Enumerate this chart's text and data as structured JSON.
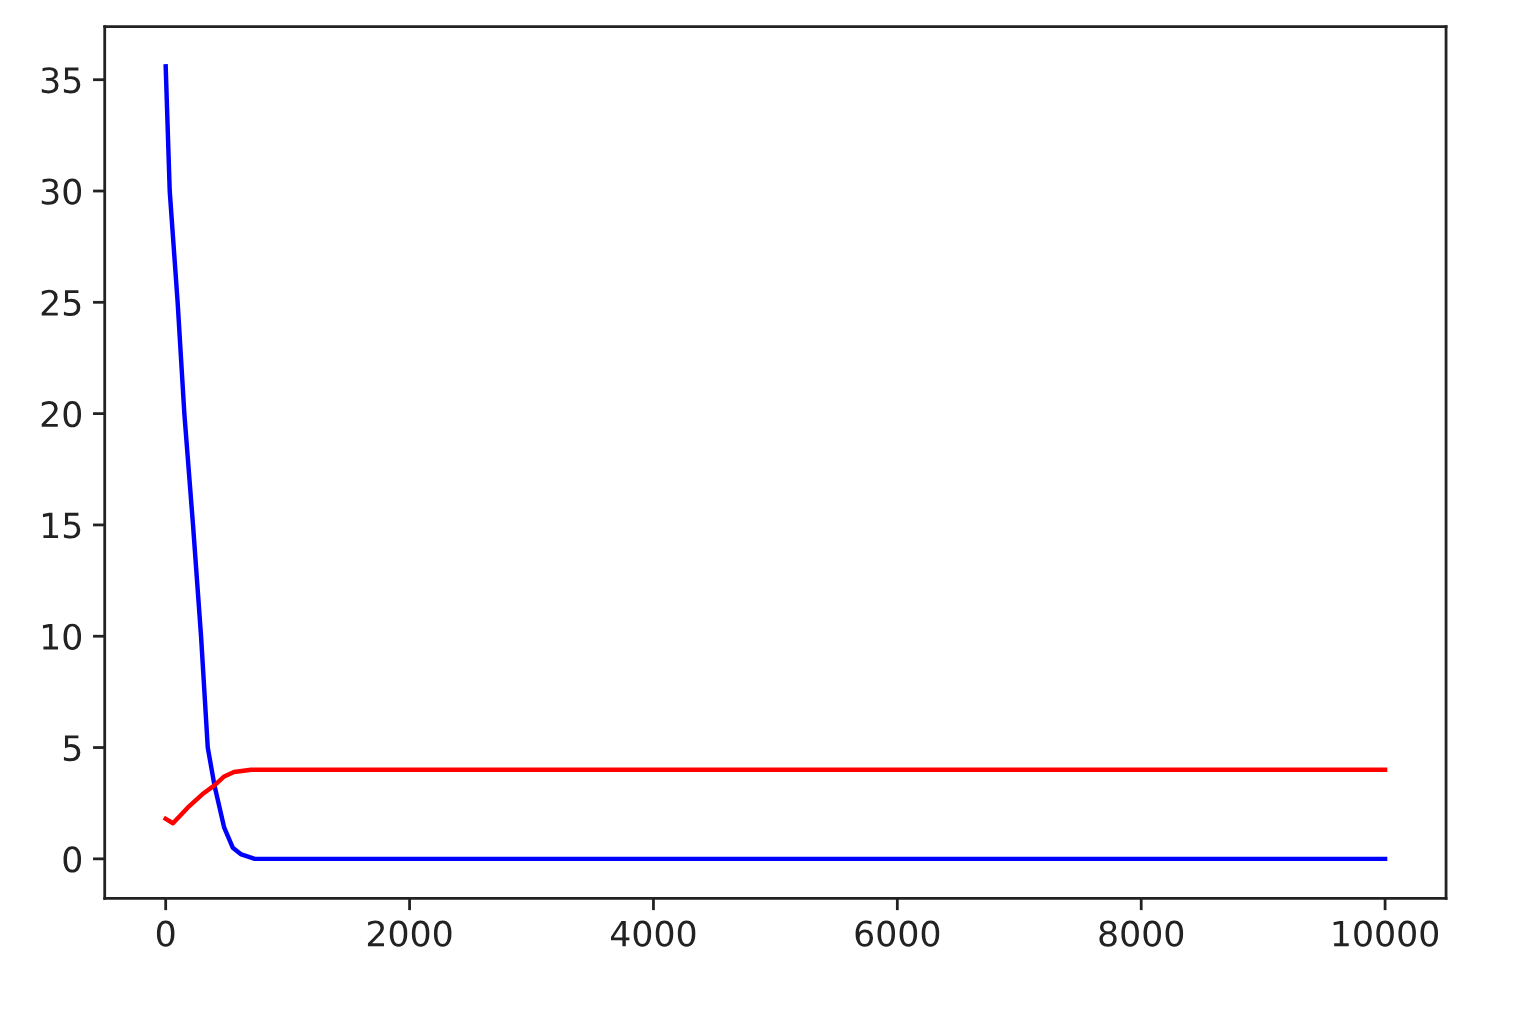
{
  "chart_data": {
    "type": "line",
    "series": [
      {
        "color": "#0000ff",
        "x": [
          0,
          33,
          98,
          153,
          224,
          290,
          345,
          400,
          480,
          550,
          620,
          730,
          10000
        ],
        "values": [
          35.6,
          30,
          25,
          20,
          15,
          10,
          5,
          3.3,
          1.4,
          0.5,
          0.2,
          0,
          0
        ]
      },
      {
        "color": "#ff0000",
        "x": [
          0,
          60,
          180,
          300,
          400,
          480,
          560,
          700,
          1000,
          10000
        ],
        "values": [
          1.8,
          1.6,
          2.3,
          2.9,
          3.3,
          3.7,
          3.9,
          4.0,
          4.0,
          4.0
        ]
      }
    ],
    "xlim": [
      -500,
      10500
    ],
    "ylim": [
      -1.78,
      37.38
    ],
    "xticks": [
      0,
      2000,
      4000,
      6000,
      8000,
      10000
    ],
    "yticks": [
      0,
      5,
      10,
      15,
      20,
      25,
      30,
      35
    ]
  }
}
